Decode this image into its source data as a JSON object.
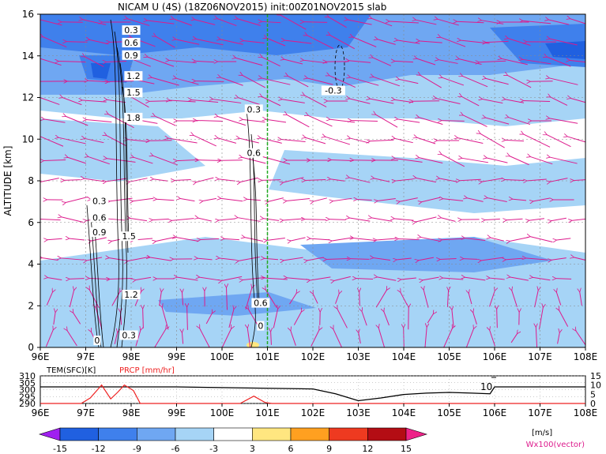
{
  "header": {
    "title": "NICAM U (4S) (18Z06NOV2015) init:00Z01NOV2015 slab"
  },
  "chart_data": [
    {
      "type": "heatmap",
      "title": "NICAM U (4S) (18Z06NOV2015) init:00Z01NOV2015 slab",
      "xlabel": "",
      "ylabel": "ALTITUDE [km]",
      "x_ticks": [
        "96E",
        "97E",
        "98E",
        "99E",
        "100E",
        "101E",
        "102E",
        "103E",
        "104E",
        "105E",
        "106E",
        "107E",
        "108E"
      ],
      "x_values": [
        96,
        97,
        98,
        99,
        100,
        101,
        102,
        103,
        104,
        105,
        106,
        107,
        108
      ],
      "y_ticks": [
        "0",
        "2",
        "4",
        "6",
        "8",
        "10",
        "12",
        "14",
        "16"
      ],
      "y_values": [
        0,
        2,
        4,
        6,
        8,
        10,
        12,
        14,
        16
      ],
      "xlim": [
        96,
        108
      ],
      "ylim": [
        0,
        16
      ],
      "grid": true,
      "marker_line_x": 101,
      "marker_line_color": "#22aa22",
      "contour_labels": [
        {
          "text": "0.3",
          "x": 98.0,
          "y": 15.2
        },
        {
          "text": "0.6",
          "x": 98.0,
          "y": 14.6
        },
        {
          "text": "0.9",
          "x": 98.0,
          "y": 14.0
        },
        {
          "text": "1.2",
          "x": 98.05,
          "y": 13.0
        },
        {
          "text": "1.5",
          "x": 98.05,
          "y": 12.2
        },
        {
          "text": "1.8",
          "x": 98.05,
          "y": 11.0
        },
        {
          "text": "0.3",
          "x": 97.3,
          "y": 7.0
        },
        {
          "text": "0.6",
          "x": 97.3,
          "y": 6.2
        },
        {
          "text": "0.9",
          "x": 97.3,
          "y": 5.5
        },
        {
          "text": "1.5",
          "x": 97.95,
          "y": 5.3
        },
        {
          "text": "1.2",
          "x": 98.0,
          "y": 2.5
        },
        {
          "text": "0.3",
          "x": 97.95,
          "y": 0.55
        },
        {
          "text": "0",
          "x": 97.25,
          "y": 0.3
        },
        {
          "text": "0.3",
          "x": 100.7,
          "y": 11.4
        },
        {
          "text": "0.6",
          "x": 100.7,
          "y": 9.3
        },
        {
          "text": "0.6",
          "x": 100.85,
          "y": 2.1
        },
        {
          "text": "0",
          "x": 100.85,
          "y": 1.0
        },
        {
          "text": "-0.3",
          "x": 102.45,
          "y": 12.3
        }
      ]
    },
    {
      "type": "line",
      "title": "",
      "xlabel": "",
      "x_ticks": [
        "96E",
        "97E",
        "98E",
        "99E",
        "100E",
        "101E",
        "102E",
        "103E",
        "104E",
        "105E",
        "106E",
        "107E",
        "108E"
      ],
      "xlim": [
        96,
        108
      ],
      "series": [
        {
          "name": "TEM(SFC)[K]",
          "axis": "left",
          "ylim": [
            290,
            310
          ],
          "ticks": [
            "290",
            "295",
            "300",
            "305",
            "310"
          ],
          "color": "#000000",
          "x": [
            96,
            97,
            97.5,
            98,
            98.5,
            99,
            100,
            101,
            102,
            102.5,
            103,
            103.5,
            104,
            104.5,
            105,
            105.5,
            105.9,
            106,
            107,
            108
          ],
          "values": [
            302,
            302,
            302,
            302,
            302,
            302,
            301.5,
            301,
            300.5,
            297,
            292,
            294,
            296.5,
            297.5,
            298,
            297.5,
            297,
            302,
            302,
            302
          ]
        },
        {
          "name": "PRCP [mm/hr]",
          "axis": "right",
          "ylim": [
            0,
            15
          ],
          "ticks": [
            "0",
            "5",
            "10",
            "15"
          ],
          "color": "#ee2222",
          "x": [
            96,
            96.9,
            97.1,
            97.35,
            97.55,
            97.7,
            97.85,
            98.05,
            98.2,
            100.4,
            100.7,
            100.95,
            101.1,
            108
          ],
          "values": [
            0,
            0,
            3,
            10,
            2.5,
            6,
            10,
            7,
            0,
            0,
            4,
            0.5,
            0,
            0
          ]
        }
      ],
      "annotations": [
        "10"
      ],
      "grid": true
    }
  ],
  "legend": {
    "labels": [
      "-15",
      "-12",
      "-9",
      "-6",
      "-3",
      "3",
      "6",
      "9",
      "12",
      "15"
    ],
    "bins": [
      {
        "color": "#a020f0"
      },
      {
        "color": "#2060e0"
      },
      {
        "color": "#3f80ec"
      },
      {
        "color": "#6fa7f2"
      },
      {
        "color": "#a6d4f6"
      },
      {
        "color": "#ffffff"
      },
      {
        "color": "#ffe680"
      },
      {
        "color": "#ffa020"
      },
      {
        "color": "#ee3a20"
      },
      {
        "color": "#b40d14"
      },
      {
        "color": "#ee2288"
      }
    ],
    "unit": "[m/s]",
    "vector_note": "Wx100(vector)"
  },
  "colors": {
    "vector": "#dd1a8c",
    "contour": "#000000"
  }
}
